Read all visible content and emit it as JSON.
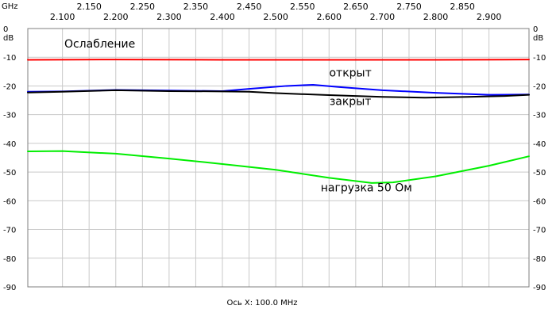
{
  "chart_data": {
    "type": "line",
    "x_unit": "GHz",
    "y_unit": "dB",
    "xlim": [
      2.035,
      2.975
    ],
    "ylim": [
      -90,
      0
    ],
    "x_ticks_top": [
      {
        "value": 2.1,
        "label": "2.100"
      },
      {
        "value": 2.15,
        "label": "2.150"
      },
      {
        "value": 2.2,
        "label": "2.200"
      },
      {
        "value": 2.25,
        "label": "2.250"
      },
      {
        "value": 2.3,
        "label": "2.300"
      },
      {
        "value": 2.35,
        "label": "2.350"
      },
      {
        "value": 2.4,
        "label": "2.400"
      },
      {
        "value": 2.45,
        "label": "2.450"
      },
      {
        "value": 2.5,
        "label": "2.500"
      },
      {
        "value": 2.55,
        "label": "2.550"
      },
      {
        "value": 2.6,
        "label": "2.600"
      },
      {
        "value": 2.65,
        "label": "2.650"
      },
      {
        "value": 2.7,
        "label": "2.700"
      },
      {
        "value": 2.75,
        "label": "2.750"
      },
      {
        "value": 2.8,
        "label": "2.800"
      },
      {
        "value": 2.85,
        "label": "2.850"
      },
      {
        "value": 2.9,
        "label": "2.900"
      }
    ],
    "y_ticks": [
      0,
      -10,
      -20,
      -30,
      -40,
      -50,
      -60,
      -70,
      -80,
      -90
    ],
    "y_tick_labels": [
      "0",
      "-10",
      "-20",
      "-30",
      "-40",
      "-50",
      "-60",
      "-70",
      "-80",
      "-90"
    ],
    "x_axis_caption": "Ось X: 100.0 MHz",
    "grid": true,
    "series": [
      {
        "name": "Ослабление",
        "color": "#ff0000",
        "points": [
          [
            2.035,
            -10.9
          ],
          [
            2.2,
            -10.8
          ],
          [
            2.4,
            -10.9
          ],
          [
            2.6,
            -10.9
          ],
          [
            2.8,
            -10.9
          ],
          [
            2.975,
            -10.8
          ]
        ]
      },
      {
        "name": "открыт",
        "color": "#0000ff",
        "points": [
          [
            2.035,
            -22.0
          ],
          [
            2.1,
            -21.9
          ],
          [
            2.2,
            -21.4
          ],
          [
            2.3,
            -21.6
          ],
          [
            2.4,
            -21.8
          ],
          [
            2.45,
            -21.0
          ],
          [
            2.52,
            -20.0
          ],
          [
            2.57,
            -19.6
          ],
          [
            2.62,
            -20.4
          ],
          [
            2.7,
            -21.5
          ],
          [
            2.8,
            -22.4
          ],
          [
            2.9,
            -23.1
          ],
          [
            2.975,
            -23.0
          ]
        ]
      },
      {
        "name": "закрыт",
        "color": "#000000",
        "points": [
          [
            2.035,
            -22.3
          ],
          [
            2.1,
            -22.0
          ],
          [
            2.2,
            -21.5
          ],
          [
            2.3,
            -21.8
          ],
          [
            2.4,
            -21.9
          ],
          [
            2.45,
            -22.0
          ],
          [
            2.5,
            -22.5
          ],
          [
            2.6,
            -23.2
          ],
          [
            2.7,
            -23.8
          ],
          [
            2.78,
            -24.1
          ],
          [
            2.86,
            -23.8
          ],
          [
            2.93,
            -23.5
          ],
          [
            2.975,
            -23.1
          ]
        ]
      },
      {
        "name": "нагрузка 50 Ом",
        "color": "#00ee00",
        "points": [
          [
            2.035,
            -42.8
          ],
          [
            2.1,
            -42.7
          ],
          [
            2.2,
            -43.6
          ],
          [
            2.3,
            -45.3
          ],
          [
            2.4,
            -47.2
          ],
          [
            2.5,
            -49.2
          ],
          [
            2.6,
            -52.0
          ],
          [
            2.68,
            -53.8
          ],
          [
            2.72,
            -53.6
          ],
          [
            2.8,
            -51.5
          ],
          [
            2.9,
            -47.8
          ],
          [
            2.975,
            -44.5
          ]
        ]
      }
    ],
    "annotations": [
      {
        "text": "Ослабление",
        "x": 2.17,
        "y": -6.6
      },
      {
        "text": "открыт",
        "x": 2.64,
        "y": -16.7
      },
      {
        "text": "закрыт",
        "x": 2.64,
        "y": -26.7
      },
      {
        "text": "нагрузка 50 Ом",
        "x": 2.67,
        "y": -56.7
      }
    ]
  }
}
